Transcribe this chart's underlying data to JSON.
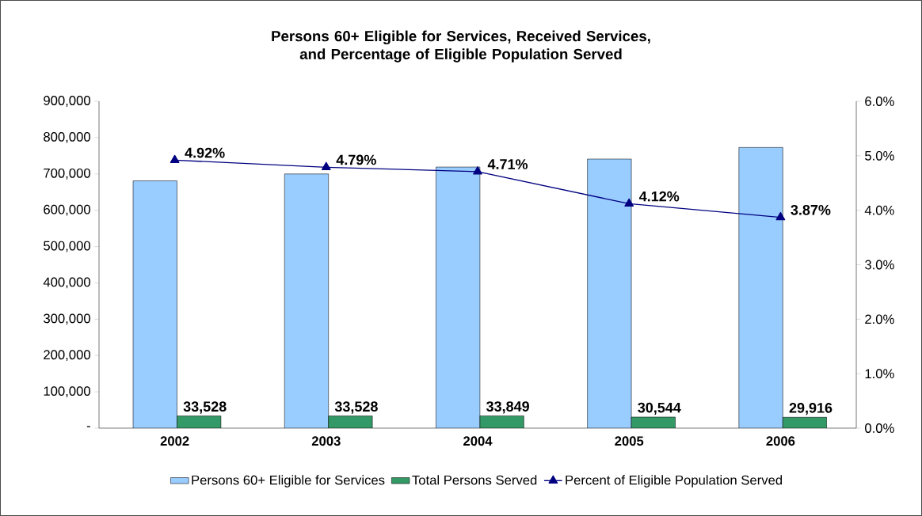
{
  "chart_data": {
    "type": "bar",
    "title": "Persons 60+ Eligible for Services, Received Services, and Percentage of Eligible Population Served",
    "categories": [
      "2002",
      "2003",
      "2004",
      "2005",
      "2006"
    ],
    "series": [
      {
        "name": "Persons 60+ Eligible for Services",
        "color": "#99ccff",
        "values": [
          681000,
          700000,
          719000,
          741000,
          773000
        ]
      },
      {
        "name": "Total Persons Served",
        "color": "#339966",
        "values": [
          33528,
          33528,
          33849,
          30544,
          29916
        ],
        "value_labels": [
          "33,528",
          "33,528",
          "33,849",
          "30,544",
          "29,916"
        ]
      },
      {
        "name": "Percent of Eligible Population Served",
        "type": "line",
        "axis": "y2",
        "color": "#000080",
        "marker": "triangle",
        "values": [
          4.92,
          4.79,
          4.71,
          4.12,
          3.87
        ],
        "value_labels": [
          "4.92%",
          "4.79%",
          "4.71%",
          "4.12%",
          "3.87%"
        ]
      }
    ],
    "ylim": [
      0,
      900000
    ],
    "yticks": [
      {
        "value": 0,
        "label": "-"
      },
      {
        "value": 100000,
        "label": "100,000"
      },
      {
        "value": 200000,
        "label": "200,000"
      },
      {
        "value": 300000,
        "label": "300,000"
      },
      {
        "value": 400000,
        "label": "400,000"
      },
      {
        "value": 500000,
        "label": "500,000"
      },
      {
        "value": 600000,
        "label": "600,000"
      },
      {
        "value": 700000,
        "label": "700,000"
      },
      {
        "value": 800000,
        "label": "800,000"
      },
      {
        "value": 900000,
        "label": "900,000"
      }
    ],
    "y2lim": [
      0,
      6
    ],
    "y2ticks": [
      {
        "value": 0,
        "label": "0.0%"
      },
      {
        "value": 1,
        "label": "1.0%"
      },
      {
        "value": 2,
        "label": "2.0%"
      },
      {
        "value": 3,
        "label": "3.0%"
      },
      {
        "value": 4,
        "label": "4.0%"
      },
      {
        "value": 5,
        "label": "5.0%"
      },
      {
        "value": 6,
        "label": "6.0%"
      }
    ],
    "legend": "bottom",
    "grid": false
  }
}
